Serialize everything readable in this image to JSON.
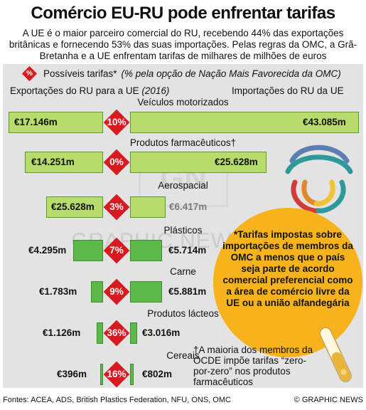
{
  "title": "Comércio EU-RU pode enfrentar tarifas",
  "intro": "A UE é o maior parceiro comercial do RU, recebendo 44% das exportações britânicas e fornecendo 53% das suas importações. Pelas regras da OMC, a Grã-Bretanha e a UE enfrentam tarifas de milhares de milhões de euros",
  "legend": {
    "symbol": "%",
    "label": "Possíveis tarifas*",
    "note": "(% pela opção de Nação Mais Favorecida da OMC)"
  },
  "columns": {
    "exports": "Exportações do RU para a UE",
    "exports_year": "(2016)",
    "imports": "Importações do RU da UE"
  },
  "categories": [
    {
      "name": "Veículos motorizados",
      "exports": "€17.146m",
      "imports": "€43.085m",
      "tariff": "10%"
    },
    {
      "name": "Produtos farmacêuticos†",
      "exports": "€14.251m",
      "imports": "€25.628m",
      "tariff": "0%"
    },
    {
      "name": "Aerospacial",
      "exports": "€25.628m",
      "imports": "€6.417m",
      "tariff": "3%"
    },
    {
      "name": "Plásticos",
      "exports": "€4.295m",
      "imports": "€5.714m",
      "tariff": "7%"
    },
    {
      "name": "Carne",
      "exports": "€1.783m",
      "imports": "€5.881m",
      "tariff": "9%"
    },
    {
      "name": "Produtos lácteos",
      "exports": "€1.126m",
      "imports": "€3.016m",
      "tariff": "36%"
    },
    {
      "name": "Cereais",
      "exports": "€396m",
      "imports": "€802m",
      "tariff": "16%"
    }
  ],
  "note_circle": "*Tarifas impostas sobre importações de membros da OMC a menos que o país seja parte de acordo comercial preferencial como a área de comércio livre da UE ou a união alfandegária",
  "footnote": "†A maioria dos membros da OCDE impõe tarifas “zero-por-zero” nos produtos farmacêuticos",
  "watermark": {
    "logo": "GN",
    "text": "GRAPHIC NEWS"
  },
  "footer": {
    "sources": "Fontes: ACEA, ADS, British Plastics Federation, NFU, ONS, OMC",
    "credit": "© GRAPHIC NEWS"
  },
  "colors": {
    "tariff": "#d71920",
    "bar_light": "#b7dc6b",
    "bar_dark": "#5cb848",
    "note": "#f6b31b"
  }
}
